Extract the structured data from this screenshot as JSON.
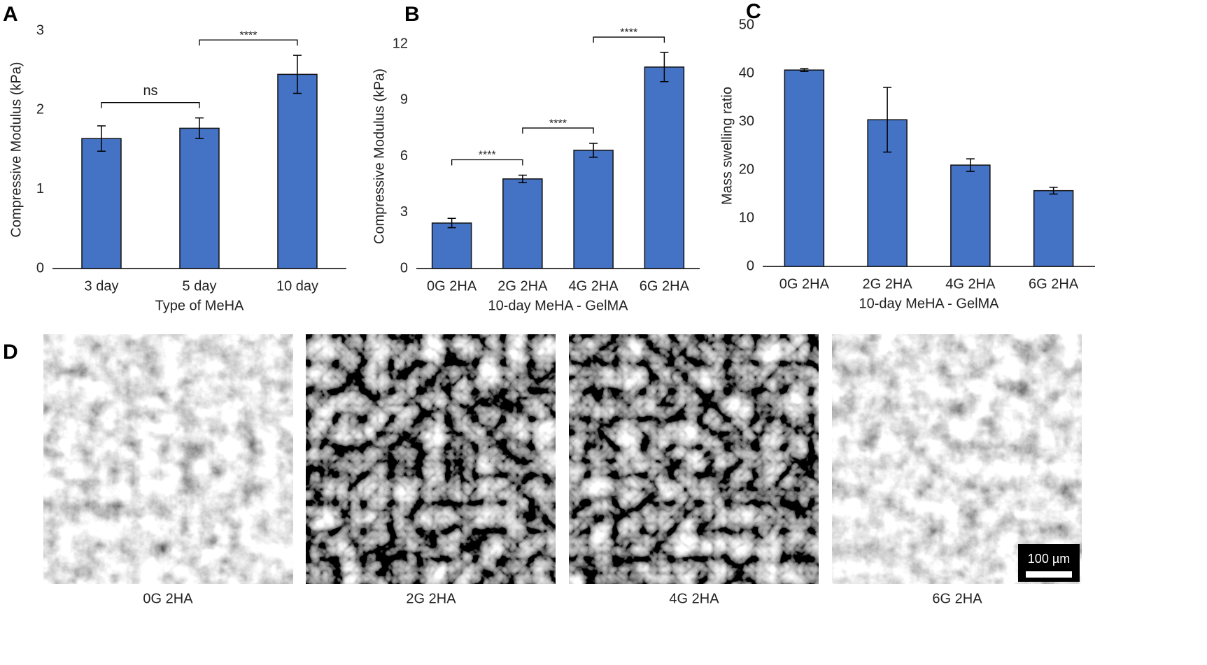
{
  "chart_data": [
    {
      "type": "bar",
      "panel": "A",
      "y_label": "Compressive Modulus (kPa)",
      "x_label": "Type of MeHA",
      "categories": [
        "3 day",
        "5 day",
        "10 day"
      ],
      "values": [
        1.64,
        1.77,
        2.45
      ],
      "errors": [
        0.16,
        0.13,
        0.24
      ],
      "color": "#4472c4",
      "ylim": [
        0,
        3
      ],
      "yticks": [
        0,
        1,
        2,
        3
      ],
      "annotations": [
        {
          "text": "ns",
          "groups": [
            "3 day",
            "5 day"
          ]
        },
        {
          "text": "****",
          "groups": [
            "5 day",
            "10 day"
          ]
        }
      ]
    },
    {
      "type": "bar",
      "panel": "B",
      "y_label": "Compressive Modulus (kPa)",
      "x_label": "10-day MeHA - GelMA",
      "categories": [
        "0G 2HA",
        "2G 2HA",
        "4G 2HA",
        "6G 2HA"
      ],
      "values": [
        2.43,
        4.79,
        6.32,
        10.77
      ],
      "errors": [
        0.25,
        0.2,
        0.37,
        0.78
      ],
      "color": "#4472c4",
      "ylim": [
        0,
        12
      ],
      "yticks": [
        0,
        3,
        6,
        9,
        12
      ],
      "annotations": [
        {
          "text": "****",
          "groups": [
            "0G 2HA",
            "2G 2HA"
          ]
        },
        {
          "text": "****",
          "groups": [
            "2G 2HA",
            "4G 2HA"
          ]
        },
        {
          "text": "****",
          "groups": [
            "4G 2HA",
            "6G 2HA"
          ]
        }
      ]
    },
    {
      "type": "bar",
      "panel": "C",
      "y_label": "Mass swelling ratio",
      "x_label": "10-day MeHA - GelMA",
      "categories": [
        "0G 2HA",
        "2G 2HA",
        "4G 2HA",
        "6G 2HA"
      ],
      "values": [
        40.7,
        30.4,
        21.0,
        15.7
      ],
      "errors": [
        0.3,
        6.7,
        1.3,
        0.7
      ],
      "color": "#4472c4",
      "ylim": [
        0,
        50
      ],
      "yticks": [
        0,
        10,
        20,
        30,
        40,
        50
      ],
      "annotations": []
    }
  ],
  "images": {
    "panel": "D",
    "captions": [
      "0G 2HA",
      "2G 2HA",
      "4G 2HA",
      "6G 2HA"
    ],
    "scale_bar": "100 µm"
  }
}
